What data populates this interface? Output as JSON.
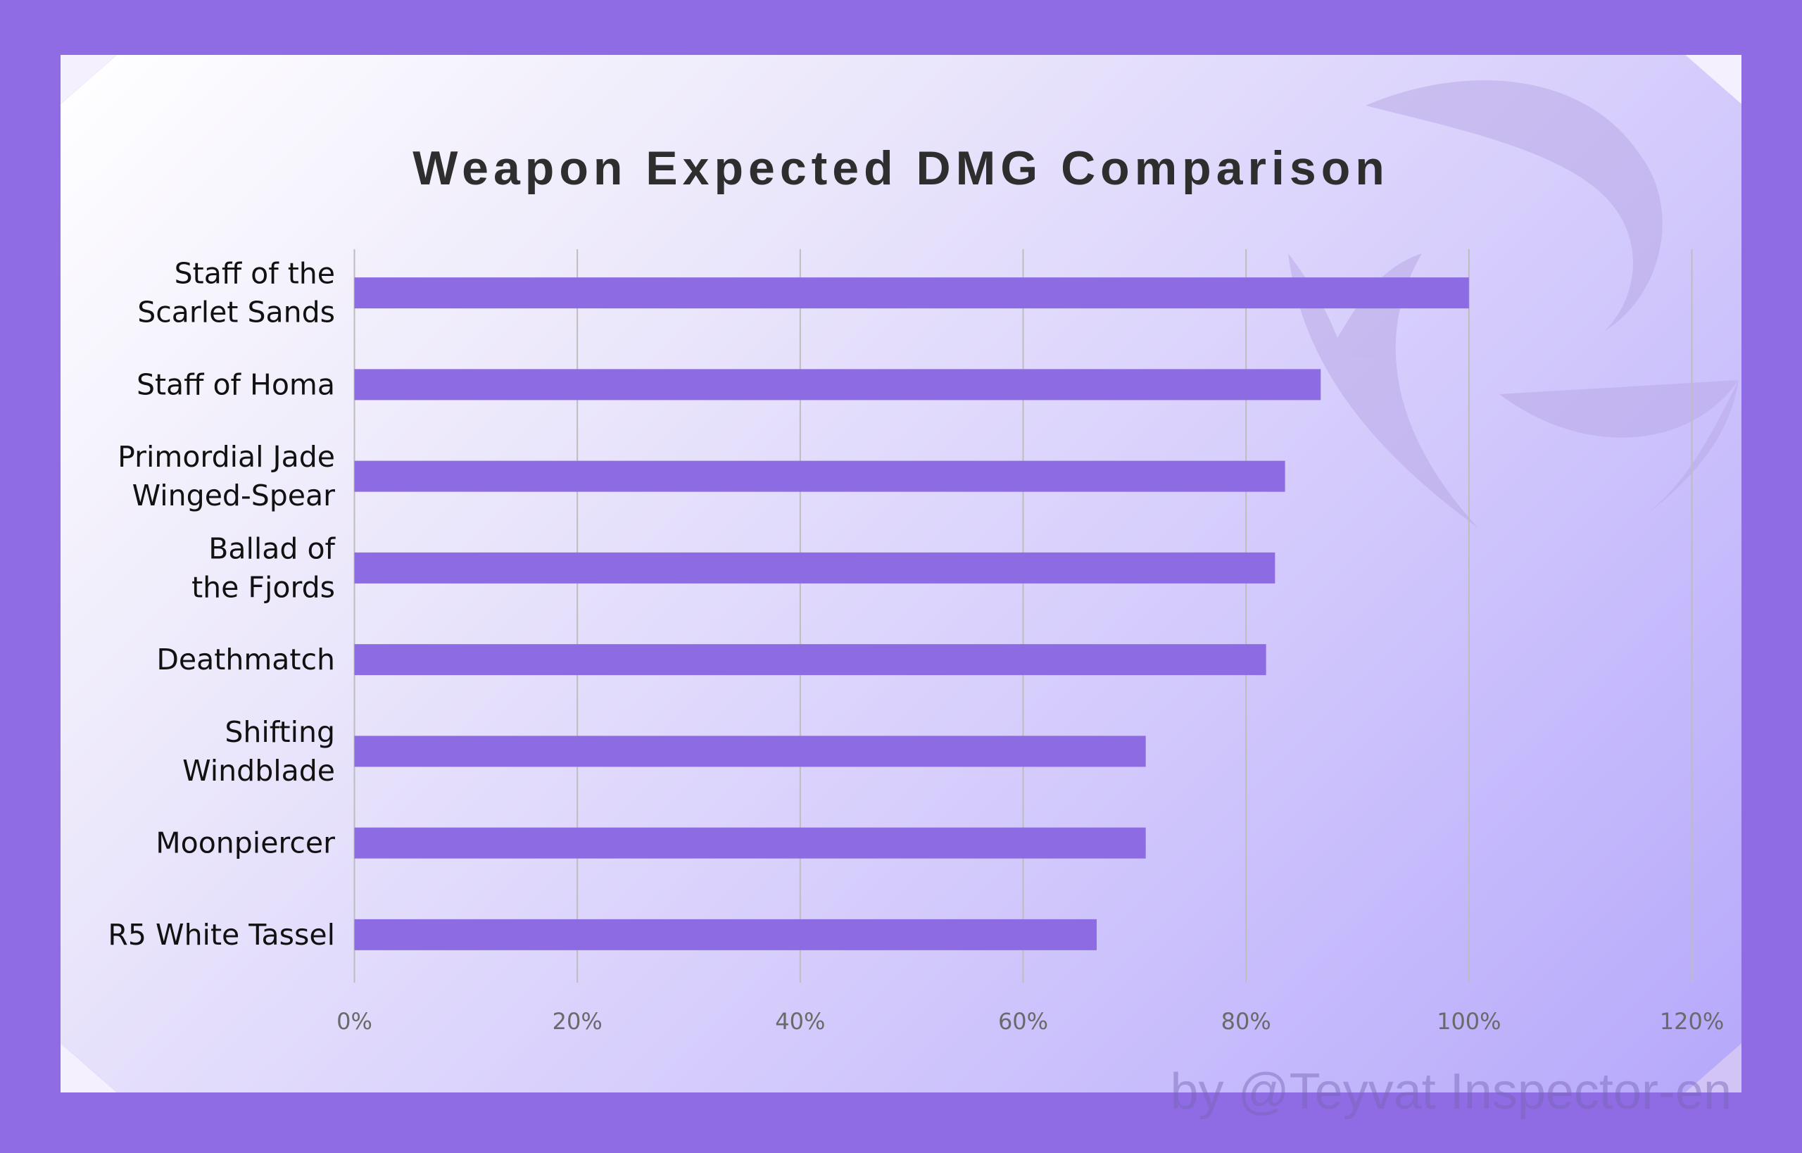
{
  "colors": {
    "border": "#8f6ce4",
    "bar": "#8c6be3",
    "grid": "#bdbdbd"
  },
  "chart_data": {
    "type": "bar",
    "orientation": "horizontal",
    "title": "Weapon Expected DMG Comparison",
    "categories": [
      [
        "Staff of the",
        "Scarlet Sands"
      ],
      [
        "Staff of Homa"
      ],
      [
        "Primordial Jade",
        "Winged-Spear"
      ],
      [
        "Ballad of",
        "the Fjords"
      ],
      [
        "Deathmatch"
      ],
      [
        "Shifting",
        "Windblade"
      ],
      [
        "Moonpiercer"
      ],
      [
        "R5 White Tassel"
      ]
    ],
    "values": [
      100,
      86.7,
      83.5,
      82.6,
      81.8,
      71.0,
      71.0,
      66.6
    ],
    "xlim": [
      0,
      120
    ],
    "xticks": [
      "0%",
      "20%",
      "40%",
      "60%",
      "80%",
      "100%",
      "120%"
    ],
    "grid": "vertical",
    "legend": "none"
  },
  "watermark": "by @Teyvat Inspector-en"
}
